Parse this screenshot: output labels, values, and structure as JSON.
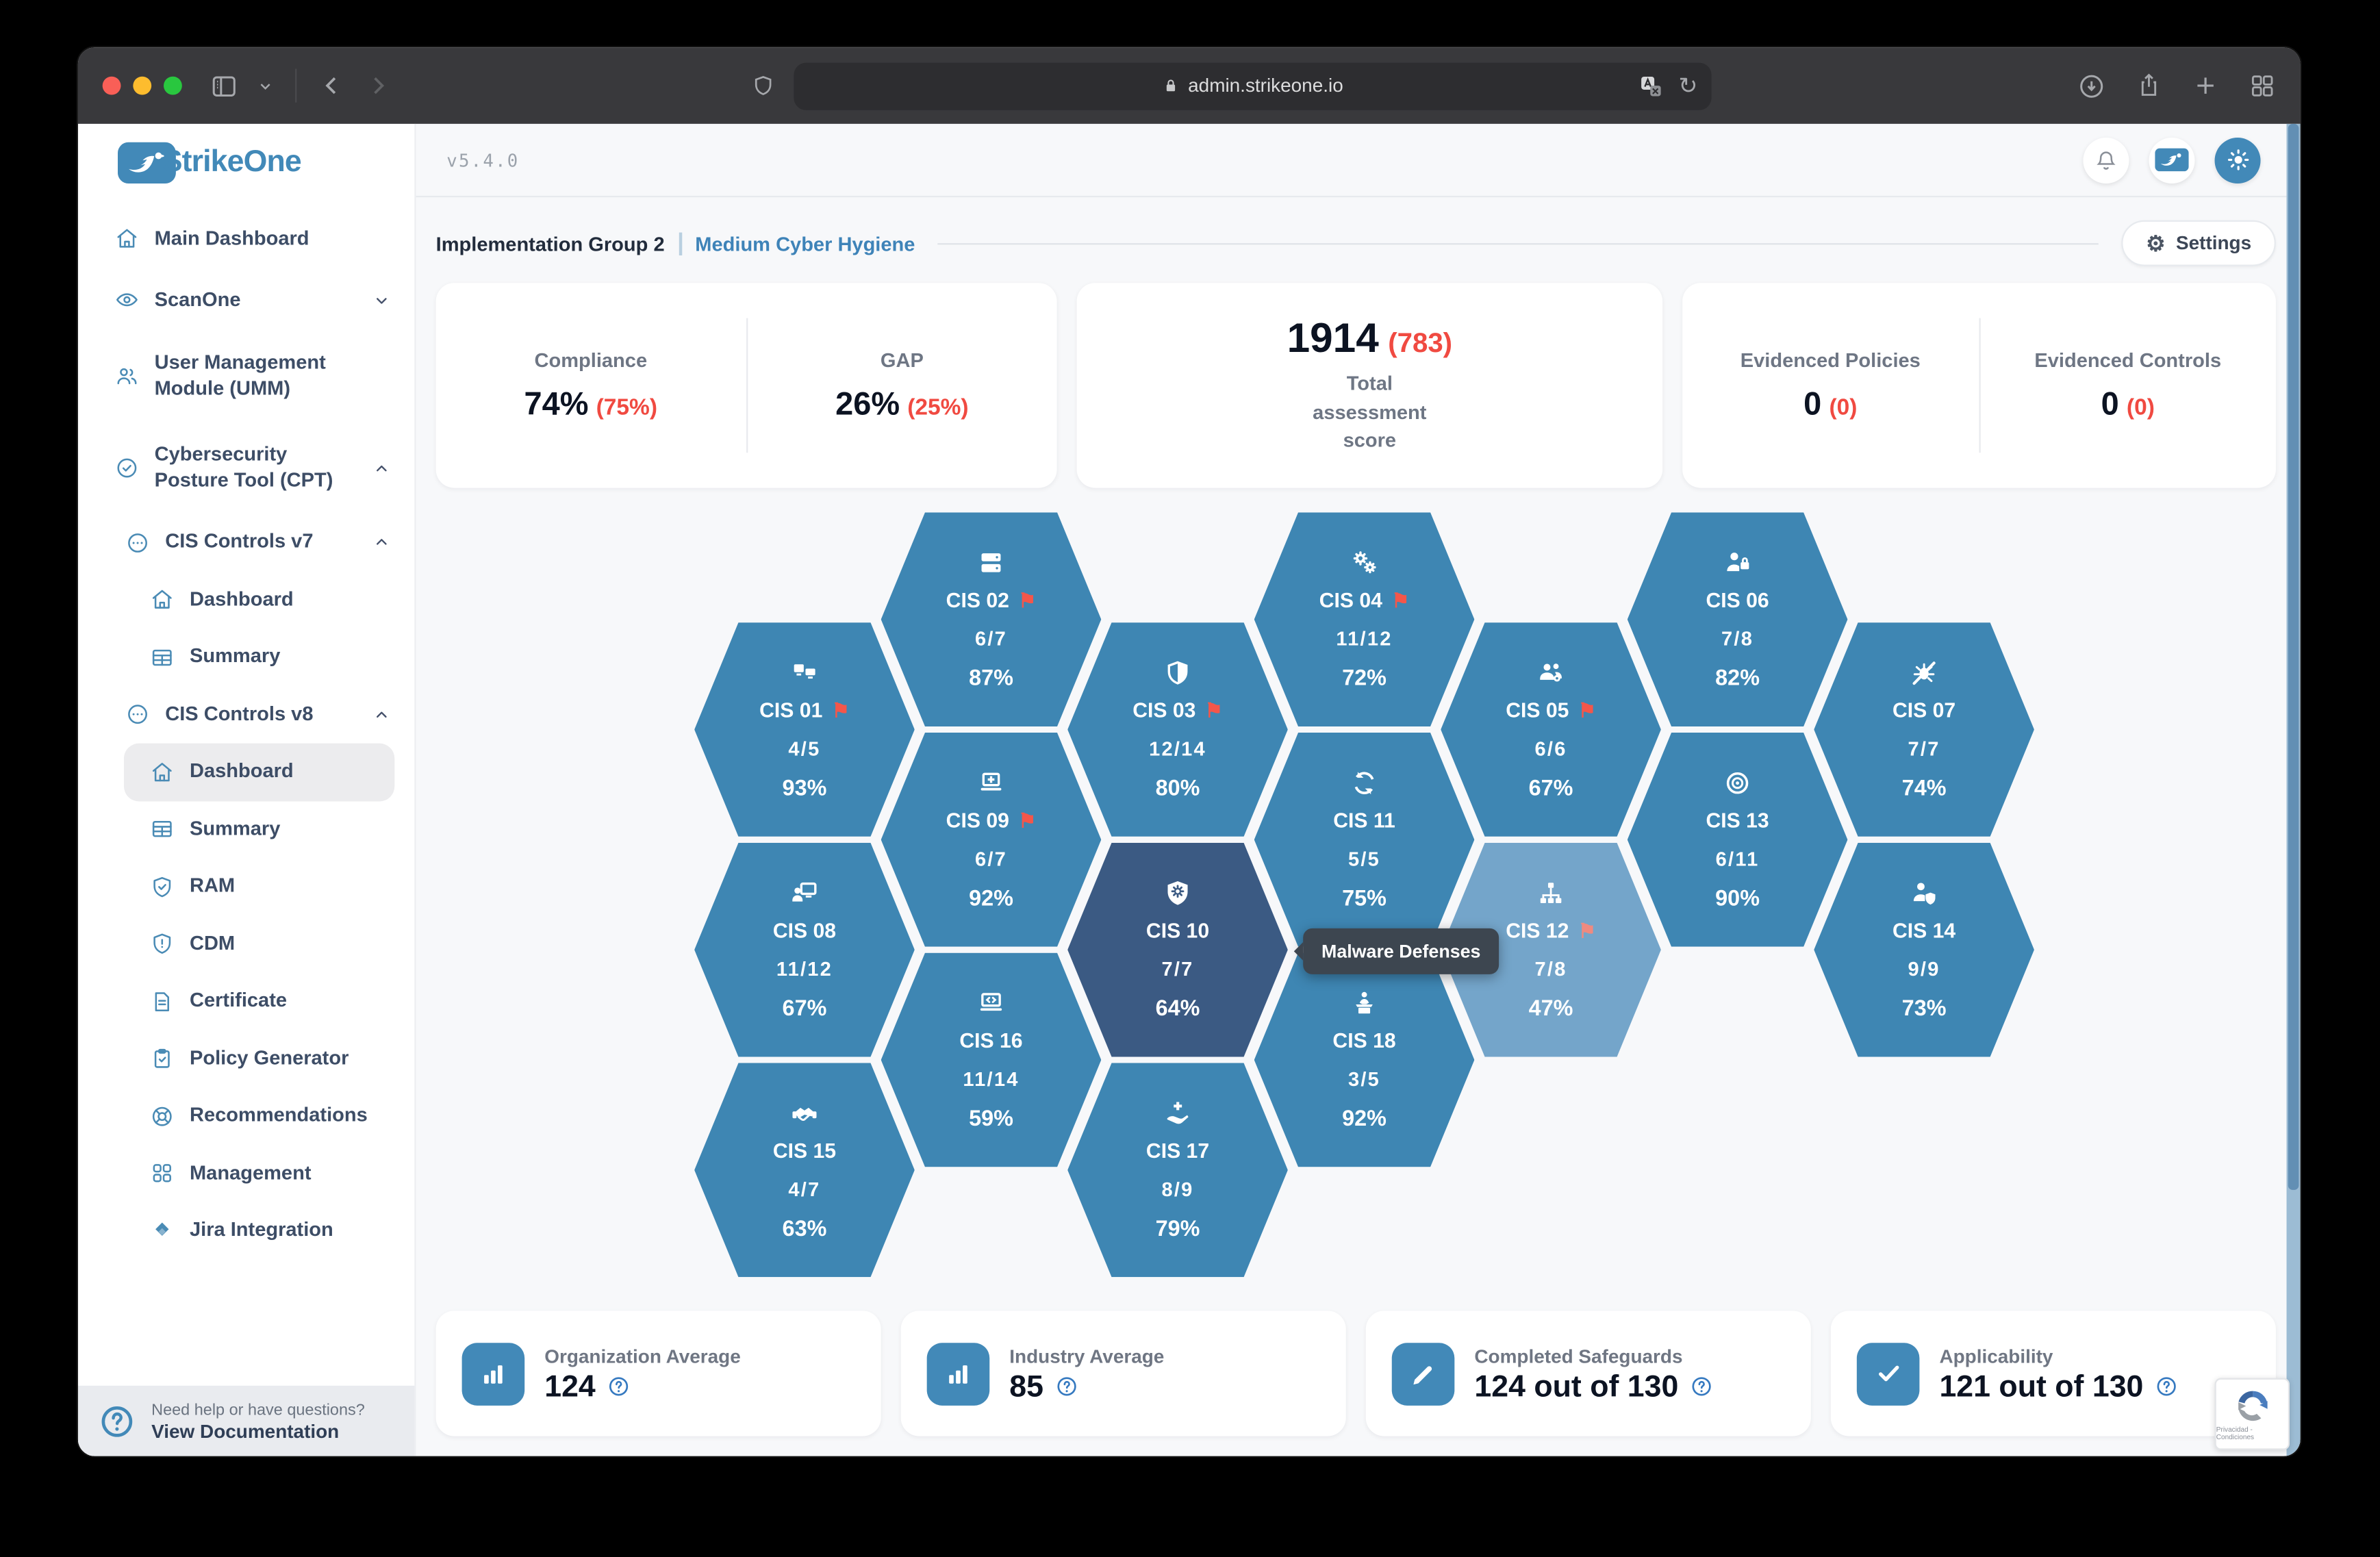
{
  "browser": {
    "url": "admin.strikeone.io",
    "icons": [
      "sidebar-panel",
      "chevron-down",
      "back",
      "forward",
      "shield",
      "lock",
      "translate",
      "reload",
      "download",
      "share",
      "new-tab",
      "tab-overview"
    ]
  },
  "topbar": {
    "version": "v5.4.0"
  },
  "header": {
    "group_label": "Implementation Group 2",
    "group_sub": "Medium Cyber Hygiene",
    "settings_label": "Settings"
  },
  "stats": {
    "compliance": {
      "label": "Compliance",
      "value": "74%",
      "delta": "(75%)"
    },
    "gap": {
      "label": "GAP",
      "value": "26%",
      "delta": "(25%)"
    },
    "total": {
      "value": "1914",
      "delta": "(783)",
      "label_lines": [
        "Total",
        "assessment",
        "score"
      ]
    },
    "evidenced_policies": {
      "label": "Evidenced Policies",
      "value": "0",
      "delta": "(0)"
    },
    "evidenced_controls": {
      "label": "Evidenced Controls",
      "value": "0",
      "delta": "(0)"
    }
  },
  "sidebar": {
    "brand": "StrikeOne",
    "items": [
      {
        "id": "main-dashboard",
        "label": "Main Dashboard",
        "icon": "home",
        "level": 0
      },
      {
        "id": "scanone",
        "label": "ScanOne",
        "icon": "eye",
        "level": 0,
        "chevron": "down"
      },
      {
        "id": "umm",
        "label": "User Management Module (UMM)",
        "icon": "users",
        "level": 0,
        "two_line": true
      },
      {
        "id": "cpt",
        "label": "Cybersecurity Posture Tool (CPT)",
        "icon": "check-circle",
        "level": 0,
        "chevron": "up",
        "two_line": true
      },
      {
        "id": "cis-controls-v7",
        "label": "CIS Controls v7",
        "icon": "ellipsis-circle",
        "level": 1,
        "chevron": "up"
      },
      {
        "id": "v7-dashboard",
        "label": "Dashboard",
        "icon": "home",
        "level": 2
      },
      {
        "id": "v7-summary",
        "label": "Summary",
        "icon": "table",
        "level": 2
      },
      {
        "id": "cis-controls-v8",
        "label": "CIS Controls v8",
        "icon": "ellipsis-circle",
        "level": 1,
        "chevron": "up"
      },
      {
        "id": "v8-dashboard",
        "label": "Dashboard",
        "icon": "home",
        "level": 2,
        "active": true
      },
      {
        "id": "v8-summary",
        "label": "Summary",
        "icon": "table",
        "level": 2
      },
      {
        "id": "ram",
        "label": "RAM",
        "icon": "shield-check",
        "level": 2
      },
      {
        "id": "cdm",
        "label": "CDM",
        "icon": "shield-alert",
        "level": 2
      },
      {
        "id": "certificate",
        "label": "Certificate",
        "icon": "document",
        "level": 2
      },
      {
        "id": "policy-generator",
        "label": "Policy Generator",
        "icon": "clipboard-check",
        "level": 2
      },
      {
        "id": "recommendations",
        "label": "Recommendations",
        "icon": "lifebuoy",
        "level": 2
      },
      {
        "id": "management",
        "label": "Management",
        "icon": "grid",
        "level": 2
      },
      {
        "id": "jira-integration",
        "label": "Jira Integration",
        "icon": "jira",
        "level": 2
      }
    ],
    "help": {
      "line1": "Need help or have questions?",
      "line2": "View Documentation"
    }
  },
  "hexgrid": {
    "tooltip": {
      "text": "Malware Defenses",
      "target": "CIS 10"
    },
    "cells": [
      {
        "id": "cis-01",
        "label": "CIS 01",
        "icon": "enterprise-assets",
        "flag": true,
        "fraction": "4/5",
        "percent": "93%",
        "col": 0,
        "row": 1,
        "variant": "normal"
      },
      {
        "id": "cis-02",
        "label": "CIS 02",
        "icon": "software-assets",
        "flag": true,
        "fraction": "6/7",
        "percent": "87%",
        "col": 1,
        "row": 0,
        "variant": "normal"
      },
      {
        "id": "cis-03",
        "label": "CIS 03",
        "icon": "data-protection",
        "flag": true,
        "fraction": "12/14",
        "percent": "80%",
        "col": 2,
        "row": 1,
        "variant": "normal"
      },
      {
        "id": "cis-04",
        "label": "CIS 04",
        "icon": "secure-configuration",
        "flag": true,
        "fraction": "11/12",
        "percent": "72%",
        "col": 3,
        "row": 0,
        "variant": "normal"
      },
      {
        "id": "cis-05",
        "label": "CIS 05",
        "icon": "account-management",
        "flag": true,
        "fraction": "6/6",
        "percent": "67%",
        "col": 4,
        "row": 1,
        "variant": "normal"
      },
      {
        "id": "cis-06",
        "label": "CIS 06",
        "icon": "access-control",
        "flag": false,
        "fraction": "7/8",
        "percent": "82%",
        "col": 5,
        "row": 0,
        "variant": "normal"
      },
      {
        "id": "cis-07",
        "label": "CIS 07",
        "icon": "vulnerability-management",
        "flag": false,
        "fraction": "7/7",
        "percent": "74%",
        "col": 6,
        "row": 1,
        "variant": "normal"
      },
      {
        "id": "cis-08",
        "label": "CIS 08",
        "icon": "audit-log-management",
        "flag": false,
        "fraction": "11/12",
        "percent": "67%",
        "col": 0,
        "row": 3,
        "variant": "normal"
      },
      {
        "id": "cis-09",
        "label": "CIS 09",
        "icon": "email-browser-protections",
        "flag": true,
        "fraction": "6/7",
        "percent": "92%",
        "col": 1,
        "row": 2,
        "variant": "normal"
      },
      {
        "id": "cis-10",
        "label": "CIS 10",
        "icon": "malware-defenses",
        "flag": false,
        "fraction": "7/7",
        "percent": "64%",
        "col": 2,
        "row": 3,
        "variant": "dark"
      },
      {
        "id": "cis-11",
        "label": "CIS 11",
        "icon": "data-recovery",
        "flag": false,
        "fraction": "5/5",
        "percent": "75%",
        "col": 3,
        "row": 2,
        "variant": "normal"
      },
      {
        "id": "cis-12",
        "label": "CIS 12",
        "icon": "network-infrastructure",
        "flag": true,
        "fraction": "7/8",
        "percent": "47%",
        "col": 4,
        "row": 3,
        "variant": "light"
      },
      {
        "id": "cis-13",
        "label": "CIS 13",
        "icon": "network-monitoring",
        "flag": false,
        "fraction": "6/11",
        "percent": "90%",
        "col": 5,
        "row": 2,
        "variant": "normal"
      },
      {
        "id": "cis-14",
        "label": "CIS 14",
        "icon": "security-awareness",
        "flag": false,
        "fraction": "9/9",
        "percent": "73%",
        "col": 6,
        "row": 3,
        "variant": "normal"
      },
      {
        "id": "cis-15",
        "label": "CIS 15",
        "icon": "service-provider-management",
        "flag": false,
        "fraction": "4/7",
        "percent": "63%",
        "col": 0,
        "row": 5,
        "variant": "normal"
      },
      {
        "id": "cis-16",
        "label": "CIS 16",
        "icon": "application-security",
        "flag": false,
        "fraction": "11/14",
        "percent": "59%",
        "col": 1,
        "row": 4,
        "variant": "normal"
      },
      {
        "id": "cis-17",
        "label": "CIS 17",
        "icon": "incident-response",
        "flag": false,
        "fraction": "8/9",
        "percent": "79%",
        "col": 2,
        "row": 5,
        "variant": "normal"
      },
      {
        "id": "cis-18",
        "label": "CIS 18",
        "icon": "penetration-testing",
        "flag": false,
        "fraction": "3/5",
        "percent": "92%",
        "col": 3,
        "row": 4,
        "variant": "normal"
      }
    ]
  },
  "footer_cards": [
    {
      "id": "organization-average",
      "label": "Organization Average",
      "value": "124",
      "icon": "bar-chart"
    },
    {
      "id": "industry-average",
      "label": "Industry Average",
      "value": "85",
      "icon": "bar-chart"
    },
    {
      "id": "completed-safeguards",
      "label": "Completed Safeguards",
      "value": "124 out of 130",
      "icon": "pencil"
    },
    {
      "id": "applicability",
      "label": "Applicability",
      "value": "121 out of 130",
      "icon": "check"
    }
  ],
  "recaptcha": {
    "text": "Privacidad - Condiciones"
  },
  "colors": {
    "hex_blue": "#3e86b3",
    "hex_dark": "#3b5a83",
    "hex_light": "#74a5ca",
    "accent_red": "#f04a41",
    "brand_blue": "#4289b8"
  }
}
